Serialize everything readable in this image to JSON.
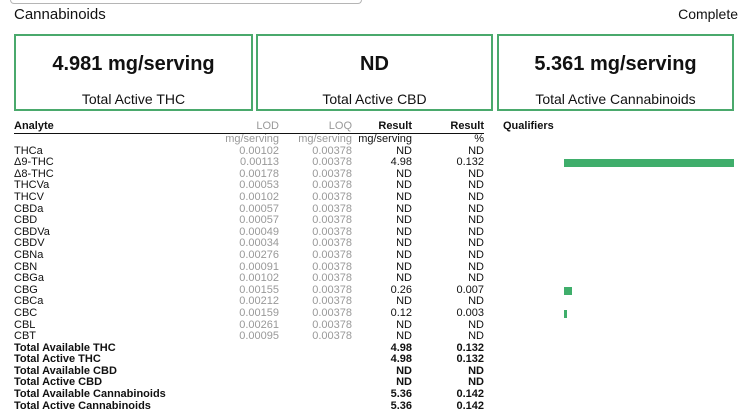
{
  "header": {
    "section_title": "Cannabinoids",
    "status": "Complete"
  },
  "cards": [
    {
      "value": "4.981 mg/serving",
      "label": "Total Active THC"
    },
    {
      "value": "ND",
      "label": "Total Active CBD"
    },
    {
      "value": "5.361 mg/serving",
      "label": "Total Active Cannabinoids"
    }
  ],
  "colors": {
    "accent": "#4aa96c",
    "bar": "#3fae6b"
  },
  "table": {
    "headers": {
      "analyte": "Analyte",
      "lod": "LOD",
      "loq": "LOQ",
      "result": "Result",
      "result_pct": "Result",
      "qualifiers": "Qualifiers"
    },
    "units": {
      "lod": "mg/serving",
      "loq": "mg/serving",
      "result": "mg/serving",
      "result_pct": "%"
    },
    "rows": [
      {
        "name": "THCa",
        "lod": "0.00102",
        "loq": "0.00378",
        "result": "ND",
        "pct": "ND"
      },
      {
        "name": "Δ9-THC",
        "lod": "0.00113",
        "loq": "0.00378",
        "result": "4.98",
        "pct": "0.132",
        "bar_fraction": 0.132
      },
      {
        "name": "Δ8-THC",
        "lod": "0.00178",
        "loq": "0.00378",
        "result": "ND",
        "pct": "ND"
      },
      {
        "name": "THCVa",
        "lod": "0.00053",
        "loq": "0.00378",
        "result": "ND",
        "pct": "ND"
      },
      {
        "name": "THCV",
        "lod": "0.00102",
        "loq": "0.00378",
        "result": "ND",
        "pct": "ND"
      },
      {
        "name": "CBDa",
        "lod": "0.00057",
        "loq": "0.00378",
        "result": "ND",
        "pct": "ND"
      },
      {
        "name": "CBD",
        "lod": "0.00057",
        "loq": "0.00378",
        "result": "ND",
        "pct": "ND"
      },
      {
        "name": "CBDVa",
        "lod": "0.00049",
        "loq": "0.00378",
        "result": "ND",
        "pct": "ND"
      },
      {
        "name": "CBDV",
        "lod": "0.00034",
        "loq": "0.00378",
        "result": "ND",
        "pct": "ND"
      },
      {
        "name": "CBNa",
        "lod": "0.00276",
        "loq": "0.00378",
        "result": "ND",
        "pct": "ND"
      },
      {
        "name": "CBN",
        "lod": "0.00091",
        "loq": "0.00378",
        "result": "ND",
        "pct": "ND"
      },
      {
        "name": "CBGa",
        "lod": "0.00102",
        "loq": "0.00378",
        "result": "ND",
        "pct": "ND"
      },
      {
        "name": "CBG",
        "lod": "0.00155",
        "loq": "0.00378",
        "result": "0.26",
        "pct": "0.007",
        "bar_fraction": 0.007
      },
      {
        "name": "CBCa",
        "lod": "0.00212",
        "loq": "0.00378",
        "result": "ND",
        "pct": "ND"
      },
      {
        "name": "CBC",
        "lod": "0.00159",
        "loq": "0.00378",
        "result": "0.12",
        "pct": "0.003",
        "bar_fraction": 0.003
      },
      {
        "name": "CBL",
        "lod": "0.00261",
        "loq": "0.00378",
        "result": "ND",
        "pct": "ND"
      },
      {
        "name": "CBT",
        "lod": "0.00095",
        "loq": "0.00378",
        "result": "ND",
        "pct": "ND"
      }
    ],
    "totals": [
      {
        "name": "Total Available THC",
        "result": "4.98",
        "pct": "0.132"
      },
      {
        "name": "Total Active THC",
        "result": "4.98",
        "pct": "0.132"
      },
      {
        "name": "Total Available CBD",
        "result": "ND",
        "pct": "ND"
      },
      {
        "name": "Total Active CBD",
        "result": "ND",
        "pct": "ND"
      },
      {
        "name": "Total Available Cannabinoids",
        "result": "5.36",
        "pct": "0.142"
      },
      {
        "name": "Total Active Cannabinoids",
        "result": "5.36",
        "pct": "0.142"
      }
    ]
  }
}
